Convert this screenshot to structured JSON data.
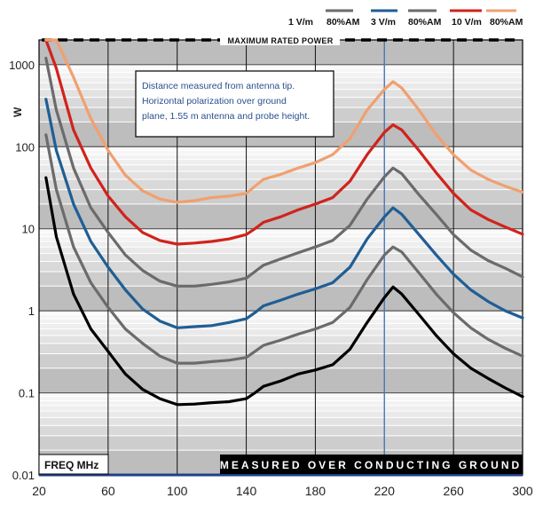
{
  "chart_data": {
    "type": "line",
    "xlabel": "FREQ MHz",
    "ylabel": "W",
    "y_scale": "log",
    "xlim": [
      20,
      300
    ],
    "ylim": [
      0.01,
      2000
    ],
    "x_ticks": [
      "20",
      "60",
      "100",
      "140",
      "180",
      "220",
      "260",
      "300"
    ],
    "y_ticks": [
      "0.01",
      "0.1",
      "1",
      "10",
      "100",
      "1000"
    ],
    "grid": true,
    "legend_position": "top",
    "legend": [
      {
        "label": "1 V/m",
        "color": "#000000"
      },
      {
        "label": "80%AM",
        "color": "#6b6b6b"
      },
      {
        "label": "3 V/m",
        "color": "#1f5e95"
      },
      {
        "label": "80%AM",
        "color": "#6b6b6b"
      },
      {
        "label": "10 V/m",
        "color": "#d0231c"
      },
      {
        "label": "80%AM",
        "color": "#f0a070"
      }
    ],
    "max_power": {
      "label": "MAXIMUM RATED POWER",
      "value": 2000
    },
    "note": [
      "Distance measured from antenna tip.",
      "Horizontal polarization over ground",
      "plane, 1.55 m antenna and probe height."
    ],
    "footer_label": "MEASURED OVER CONDUCTING GROUND",
    "x": [
      24,
      30,
      40,
      50,
      60,
      70,
      80,
      90,
      100,
      110,
      120,
      130,
      140,
      145,
      150,
      160,
      170,
      180,
      190,
      200,
      210,
      220,
      225,
      230,
      240,
      250,
      260,
      270,
      280,
      290,
      300
    ],
    "series": [
      {
        "color": "#000000",
        "values": [
          42,
          8,
          1.6,
          0.6,
          0.32,
          0.17,
          0.11,
          0.085,
          0.072,
          0.073,
          0.076,
          0.078,
          0.085,
          0.1,
          0.12,
          0.14,
          0.17,
          0.19,
          0.22,
          0.34,
          0.72,
          1.45,
          1.95,
          1.6,
          0.9,
          0.5,
          0.3,
          0.2,
          0.15,
          0.115,
          0.09
        ]
      },
      {
        "color": "#6b6b6b",
        "values": [
          140,
          30,
          6,
          2.2,
          1.1,
          0.6,
          0.4,
          0.28,
          0.23,
          0.23,
          0.24,
          0.25,
          0.27,
          0.32,
          0.38,
          0.44,
          0.52,
          0.6,
          0.72,
          1.1,
          2.4,
          4.8,
          6.0,
          5.2,
          2.9,
          1.6,
          0.95,
          0.62,
          0.45,
          0.35,
          0.28
        ]
      },
      {
        "color": "#1f5e95",
        "values": [
          380,
          90,
          20,
          7,
          3.4,
          1.8,
          1.05,
          0.75,
          0.62,
          0.64,
          0.66,
          0.72,
          0.8,
          0.95,
          1.15,
          1.35,
          1.6,
          1.85,
          2.2,
          3.4,
          7.5,
          14,
          18,
          15,
          8.5,
          4.8,
          2.8,
          1.8,
          1.3,
          1.0,
          0.82
        ]
      },
      {
        "color": "#6b6b6b",
        "values": [
          1200,
          280,
          55,
          18,
          9,
          4.8,
          3.1,
          2.3,
          2.0,
          2.0,
          2.1,
          2.25,
          2.5,
          3.0,
          3.6,
          4.3,
          5.1,
          6.0,
          7.2,
          11,
          23,
          43,
          55,
          47,
          26,
          15,
          8.5,
          5.5,
          4.1,
          3.3,
          2.6
        ]
      },
      {
        "color": "#d0231c",
        "values": [
          2000,
          900,
          160,
          55,
          25,
          14,
          9,
          7.2,
          6.5,
          6.7,
          7.0,
          7.5,
          8.5,
          10,
          12,
          14,
          17,
          20,
          24,
          38,
          80,
          150,
          185,
          160,
          90,
          48,
          27,
          17,
          13,
          10.5,
          8.6
        ]
      },
      {
        "color": "#f0a070",
        "values": [
          2000,
          2000,
          700,
          220,
          90,
          45,
          29,
          23,
          21,
          22,
          24,
          25,
          27,
          33,
          40,
          46,
          55,
          64,
          80,
          125,
          280,
          500,
          620,
          520,
          280,
          140,
          80,
          52,
          40,
          33,
          28
        ]
      }
    ]
  }
}
